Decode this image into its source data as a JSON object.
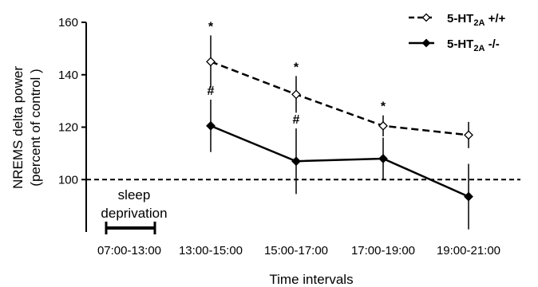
{
  "chart_data": {
    "type": "line",
    "xlabel": "Time intervals",
    "ylabel_line1": "NREMS delta power",
    "ylabel_line2": "(percent of control )",
    "categories": [
      "07:00-13:00",
      "13:00-15:00",
      "15:00-17:00",
      "17:00-19:00",
      "19:00-21:00"
    ],
    "yticks": [
      "100",
      "120",
      "140",
      "160"
    ],
    "ylim": [
      80,
      160
    ],
    "reference_line": 100,
    "series": [
      {
        "name_main": "5-HT",
        "name_sub": "2A",
        "name_suffix": " +/+",
        "line_style": "dashed",
        "marker": "open-diamond",
        "x": [
          "13:00-15:00",
          "15:00-17:00",
          "17:00-19:00",
          "19:00-21:00"
        ],
        "values": [
          145,
          132.5,
          120.5,
          117
        ],
        "error": [
          10,
          7,
          4,
          5
        ],
        "annotations": [
          "*",
          "*",
          "*",
          ""
        ]
      },
      {
        "name_main": "5-HT",
        "name_sub": "2A",
        "name_suffix": " -/-",
        "line_style": "solid",
        "marker": "filled-diamond",
        "x": [
          "13:00-15:00",
          "15:00-17:00",
          "17:00-19:00",
          "19:00-21:00"
        ],
        "values": [
          120.5,
          107,
          108,
          93.5
        ],
        "error": [
          10,
          12.5,
          8,
          12.5
        ],
        "annotations": [
          "#",
          "#",
          "",
          ""
        ]
      }
    ],
    "sleep_deprivation": {
      "label_line1": "sleep",
      "label_line2": "deprivation",
      "span": [
        "07:00",
        "13:00"
      ]
    },
    "grid": false,
    "legend_position": "top-right"
  }
}
